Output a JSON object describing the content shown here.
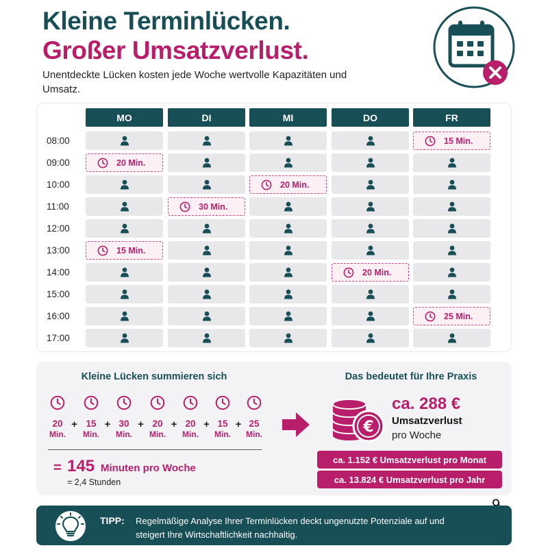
{
  "header": {
    "title_line1": "Kleine Terminlücken.",
    "title_line2": "Großer Umsatzverlust.",
    "subtitle": "Unentdeckte Lücken kosten jede Woche wertvolle Kapazitäten und Umsatz."
  },
  "schedule": {
    "days": [
      "MO",
      "DI",
      "MI",
      "DO",
      "FR"
    ],
    "times": [
      "08:00",
      "09:00",
      "10:00",
      "11:00",
      "12:00",
      "13:00",
      "14:00",
      "15:00",
      "16:00",
      "17:00"
    ],
    "gaps": [
      {
        "day": 4,
        "time": 0,
        "label": "15 Min."
      },
      {
        "day": 0,
        "time": 1,
        "label": "20 Min."
      },
      {
        "day": 2,
        "time": 2,
        "label": "20 Min."
      },
      {
        "day": 1,
        "time": 3,
        "label": "30 Min."
      },
      {
        "day": 0,
        "time": 5,
        "label": "15 Min."
      },
      {
        "day": 3,
        "time": 6,
        "label": "20 Min."
      },
      {
        "day": 4,
        "time": 8,
        "label": "25 Min."
      }
    ]
  },
  "summary": {
    "title": "Kleine Lücken summieren sich",
    "gaps": [
      "20",
      "15",
      "30",
      "20",
      "20",
      "15",
      "25"
    ],
    "unit": "Min.",
    "plus": "+",
    "equals": "=",
    "total_value": "145",
    "total_unit": "Minuten pro Woche",
    "total_hours": "= 2,4 Stunden"
  },
  "result": {
    "title": "Das bedeutet für Ihre Praxis",
    "amount": "ca. 288 €",
    "label": "Umsatzverlust",
    "period": "pro Woche",
    "monthly": "ca. 1.152 € Umsatzverlust pro Monat",
    "yearly": "ca. 13.824 € Umsatzverlust pro Jahr",
    "coin_symbol": "€"
  },
  "page_number": "9",
  "tip": {
    "label": "TIPP:",
    "text": "Regelmäßige Analyse Ihrer Terminlücken deckt ungenutzte Potenziale auf und steigert Ihre Wirtschaftlichkeit nachhaltig."
  },
  "icons": {
    "hero": "calendar-x-icon",
    "slot_person": "person-icon",
    "gap_clock": "clock-icon",
    "arrow": "arrow-right-icon",
    "coins": "coins-euro-icon",
    "tip": "lightbulb-icon"
  },
  "colors": {
    "teal": "#184f57",
    "magenta": "#b81e6a",
    "slot": "#e8e8ea"
  }
}
